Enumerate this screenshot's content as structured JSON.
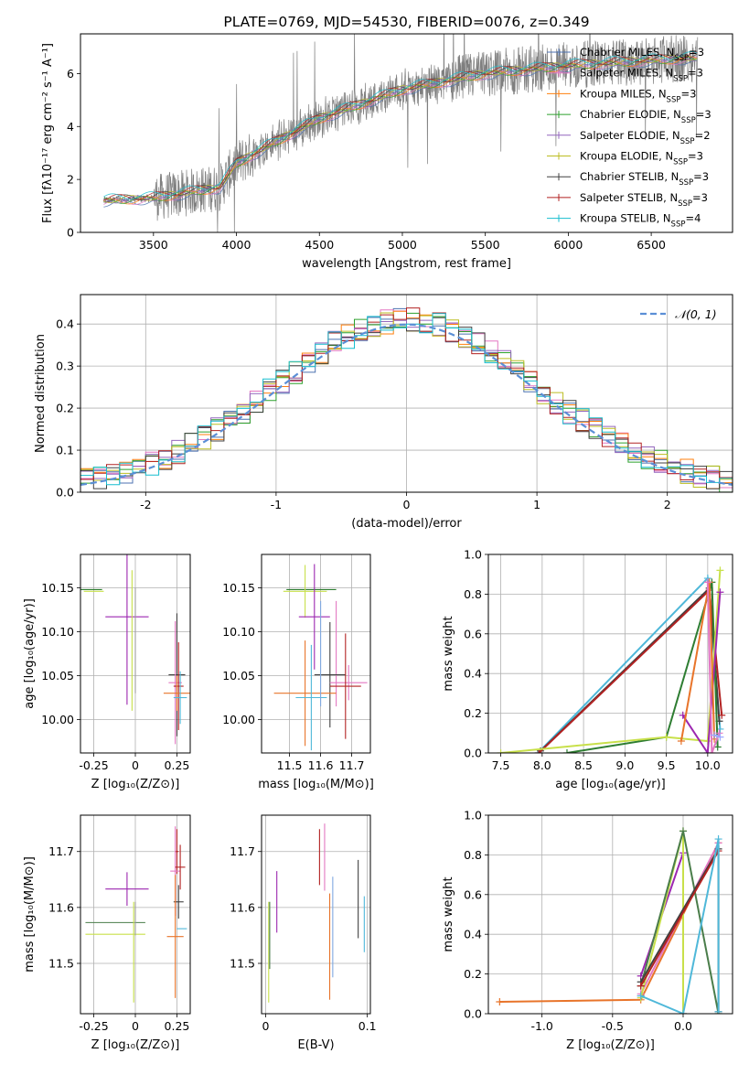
{
  "chart_data": [
    {
      "id": "spectrum",
      "type": "line",
      "title": "PLATE=0769, MJD=54530, FIBERID=0076, z=0.349",
      "xlabel": "wavelength [Angstrom, rest frame]",
      "ylabel": "Flux [fλ10⁻¹⁷ erg cm⁻² s⁻¹ A⁻¹]",
      "xlim": [
        3060,
        6990
      ],
      "ylim": [
        0,
        7.5
      ],
      "xticks": [
        3500,
        4000,
        4500,
        5000,
        5500,
        6000,
        6500
      ],
      "yticks": [
        0,
        2,
        4,
        6
      ],
      "data_continuum": {
        "x": [
          3200,
          3500,
          3900,
          4000,
          4200,
          4500,
          5000,
          5500,
          6000,
          6500,
          6780
        ],
        "y": [
          1.2,
          1.3,
          1.7,
          2.6,
          3.3,
          4.3,
          5.4,
          6.0,
          6.3,
          6.5,
          6.6
        ]
      },
      "legend": [
        {
          "label": "Chabrier MILES, N_SSP=3",
          "color": "#4c72b0"
        },
        {
          "label": "Salpeter MILES, N_SSP=3",
          "color": "#e377c2"
        },
        {
          "label": "Kroupa MILES, N_SSP=3",
          "color": "#ff7f0e"
        },
        {
          "label": "Chabrier ELODIE, N_SSP=3",
          "color": "#2ca02c"
        },
        {
          "label": "Salpeter ELODIE, N_SSP=2",
          "color": "#9467bd"
        },
        {
          "label": "Kroupa ELODIE, N_SSP=3",
          "color": "#bcbd22"
        },
        {
          "label": "Chabrier STELIB, N_SSP=3",
          "color": "#404040"
        },
        {
          "label": "Salpeter STELIB, N_SSP=3",
          "color": "#b22222"
        },
        {
          "label": "Kroupa STELIB, N_SSP=4",
          "color": "#17becf"
        }
      ],
      "legend_parts": [
        {
          "name": "Chabrier MILES, N",
          "sub": "SSP",
          "rest": "=3"
        },
        {
          "name": "Salpeter MILES, N",
          "sub": "SSP",
          "rest": "=3"
        },
        {
          "name": "Kroupa MILES, N",
          "sub": "SSP",
          "rest": "=3"
        },
        {
          "name": "Chabrier ELODIE, N",
          "sub": "SSP",
          "rest": "=3"
        },
        {
          "name": "Salpeter ELODIE, N",
          "sub": "SSP",
          "rest": "=2"
        },
        {
          "name": "Kroupa ELODIE, N",
          "sub": "SSP",
          "rest": "=3"
        },
        {
          "name": "Chabrier STELIB, N",
          "sub": "SSP",
          "rest": "=3"
        },
        {
          "name": "Salpeter STELIB, N",
          "sub": "SSP",
          "rest": "=3"
        },
        {
          "name": "Kroupa STELIB, N",
          "sub": "SSP",
          "rest": "=4"
        }
      ]
    },
    {
      "id": "residuals",
      "type": "line",
      "xlabel": "(data-model)/error",
      "ylabel": "Normed distribution",
      "xlim": [
        -2.5,
        2.5
      ],
      "ylim": [
        0,
        0.47
      ],
      "xticks": [
        -2,
        -1,
        0,
        1,
        2
      ],
      "yticks": [
        0.0,
        0.1,
        0.2,
        0.3,
        0.4
      ],
      "legend": [
        {
          "label": "𝒩(0, 1)",
          "color": "#5b8fd6",
          "style": "dashed"
        }
      ],
      "gaussian": {
        "mean": 0,
        "sigma": 1
      }
    },
    {
      "id": "age_vs_Z",
      "type": "scatter",
      "xlabel": "Z [log₁₀(Z/Z⊙)]",
      "ylabel": "age  [log₁₀(age/yr)]",
      "xlim": [
        -0.33,
        0.33
      ],
      "ylim": [
        9.962,
        10.188
      ],
      "xticks": [
        -0.25,
        0.0,
        0.25
      ],
      "yticks": [
        10.0,
        10.05,
        10.1,
        10.15
      ],
      "points": [
        {
          "x": -0.28,
          "y": 10.148,
          "xerr": 0.08,
          "yerr": 0.0,
          "color": "#2e7d32"
        },
        {
          "x": -0.25,
          "y": 10.146,
          "xerr": 0.06,
          "yerr": 0.0,
          "color": "#c8e04a"
        },
        {
          "x": -0.05,
          "y": 10.117,
          "xerr": 0.13,
          "yerr": 0.1,
          "color": "#9c27b0"
        },
        {
          "x": -0.02,
          "y": 10.09,
          "xerr": 0.0,
          "yerr": 0.08,
          "color": "#c8e04a"
        },
        {
          "x": 0.0,
          "y": 10.09,
          "xerr": 0.0,
          "yerr": 0.06,
          "color": "#9e9e9e"
        },
        {
          "x": 0.25,
          "y": 10.051,
          "xerr": 0.05,
          "yerr": 0.07,
          "color": "#404040"
        },
        {
          "x": 0.24,
          "y": 10.042,
          "xerr": 0.04,
          "yerr": 0.07,
          "color": "#e377c2"
        },
        {
          "x": 0.26,
          "y": 10.038,
          "xerr": 0.03,
          "yerr": 0.05,
          "color": "#b22222"
        },
        {
          "x": 0.25,
          "y": 10.03,
          "xerr": 0.08,
          "yerr": 0.02,
          "color": "#e8742a"
        },
        {
          "x": 0.27,
          "y": 10.025,
          "xerr": 0.04,
          "yerr": 0.03,
          "color": "#4fb8d9"
        }
      ]
    },
    {
      "id": "age_vs_mass",
      "type": "scatter",
      "xlabel": "mass [log₁₀(M/M⊙)]",
      "ylabel": "",
      "xlim": [
        11.41,
        11.76
      ],
      "ylim": [
        9.962,
        10.188
      ],
      "xticks": [
        11.5,
        11.6,
        11.7
      ],
      "yticks": [
        10.0,
        10.05,
        10.1,
        10.15
      ],
      "points": [
        {
          "x": 11.57,
          "y": 10.148,
          "xerr": 0.08,
          "yerr": 0.0,
          "color": "#2e7d32"
        },
        {
          "x": 11.55,
          "y": 10.146,
          "xerr": 0.07,
          "yerr": 0.03,
          "color": "#c8e04a"
        },
        {
          "x": 11.58,
          "y": 10.117,
          "xerr": 0.05,
          "yerr": 0.06,
          "color": "#9c27b0"
        },
        {
          "x": 11.65,
          "y": 10.075,
          "xerr": 0.0,
          "yerr": 0.06,
          "color": "#e377c2"
        },
        {
          "x": 11.63,
          "y": 10.051,
          "xerr": 0.05,
          "yerr": 0.06,
          "color": "#404040"
        },
        {
          "x": 11.69,
          "y": 10.042,
          "xerr": 0.06,
          "yerr": 0.02,
          "color": "#e377c2"
        },
        {
          "x": 11.68,
          "y": 10.038,
          "xerr": 0.05,
          "yerr": 0.06,
          "color": "#b22222"
        },
        {
          "x": 11.55,
          "y": 10.03,
          "xerr": 0.1,
          "yerr": 0.06,
          "color": "#e8742a"
        },
        {
          "x": 11.57,
          "y": 10.025,
          "xerr": 0.05,
          "yerr": 0.06,
          "color": "#4fb8d9"
        },
        {
          "x": 11.6,
          "y": 10.075,
          "xerr": 0.0,
          "yerr": 0.06,
          "color": "#7fa8e0"
        }
      ]
    },
    {
      "id": "massweight_vs_age",
      "type": "line",
      "xlabel": "age  [log₁₀(age/yr)]",
      "ylabel": "mass weight",
      "xlim": [
        7.35,
        10.3
      ],
      "ylim": [
        0.0,
        1.0
      ],
      "xticks": [
        7.5,
        8.0,
        8.5,
        9.0,
        9.5,
        10.0
      ],
      "yticks": [
        0.0,
        0.2,
        0.4,
        0.6,
        0.8,
        1.0
      ],
      "series": [
        {
          "color": "#4fb8d9",
          "x": [
            7.95,
            10.0,
            10.15
          ],
          "y": [
            0.0,
            0.88,
            0.12
          ]
        },
        {
          "color": "#404040",
          "x": [
            7.98,
            10.02,
            10.14
          ],
          "y": [
            0.01,
            0.83,
            0.16
          ]
        },
        {
          "color": "#b22222",
          "x": [
            7.96,
            10.02,
            10.17
          ],
          "y": [
            0.0,
            0.82,
            0.19
          ]
        },
        {
          "color": "#2e7d32",
          "x": [
            8.3,
            9.5,
            10.05,
            10.12
          ],
          "y": [
            0.0,
            0.08,
            0.86,
            0.03
          ]
        },
        {
          "color": "#c8e04a",
          "x": [
            7.5,
            9.5,
            10.0,
            10.15
          ],
          "y": [
            0.0,
            0.08,
            0.06,
            0.92
          ]
        },
        {
          "color": "#9c27b0",
          "x": [
            9.7,
            10.0,
            10.15
          ],
          "y": [
            0.19,
            0.0,
            0.81
          ]
        },
        {
          "color": "#e8742a",
          "x": [
            9.68,
            10.02,
            10.08
          ],
          "y": [
            0.06,
            0.86,
            0.07
          ]
        },
        {
          "color": "#e377c2",
          "x": [
            10.0,
            10.05,
            10.14
          ],
          "y": [
            0.86,
            0.0,
            0.1
          ]
        },
        {
          "color": "#9aa8ff",
          "x": [
            10.08,
            10.15
          ],
          "y": [
            0.09,
            0.08
          ]
        }
      ]
    },
    {
      "id": "mass_vs_Z",
      "type": "scatter",
      "xlabel": "Z [log₁₀(Z/Z⊙)]",
      "ylabel": "mass [log₁₀(M/M⊙)]",
      "xlim": [
        -0.33,
        0.33
      ],
      "ylim": [
        11.41,
        11.765
      ],
      "xticks": [
        -0.25,
        0.0,
        0.25
      ],
      "yticks": [
        11.5,
        11.6,
        11.7
      ],
      "points": [
        {
          "x": -0.05,
          "y": 11.633,
          "xerr": 0.13,
          "yerr": 0.03,
          "color": "#9c27b0"
        },
        {
          "x": -0.12,
          "y": 11.573,
          "xerr": 0.18,
          "yerr": 0.0,
          "color": "#4a7d4a"
        },
        {
          "x": -0.12,
          "y": 11.552,
          "xerr": 0.18,
          "yerr": 0.0,
          "color": "#c8e04a"
        },
        {
          "x": -0.01,
          "y": 11.52,
          "xerr": 0.0,
          "yerr": 0.09,
          "color": "#c8e04a"
        },
        {
          "x": 0.0,
          "y": 11.58,
          "xerr": 0.0,
          "yerr": 0.03,
          "color": "#9e9e9e"
        },
        {
          "x": 0.25,
          "y": 11.7,
          "xerr": 0.01,
          "yerr": 0.04,
          "color": "#b22222"
        },
        {
          "x": 0.24,
          "y": 11.665,
          "xerr": 0.03,
          "yerr": 0.08,
          "color": "#e377c2"
        },
        {
          "x": 0.27,
          "y": 11.672,
          "xerr": 0.03,
          "yerr": 0.04,
          "color": "#b22222"
        },
        {
          "x": 0.26,
          "y": 11.61,
          "xerr": 0.03,
          "yerr": 0.03,
          "color": "#404040"
        },
        {
          "x": 0.28,
          "y": 11.562,
          "xerr": 0.03,
          "yerr": 0.0,
          "color": "#4fb8d9"
        },
        {
          "x": 0.24,
          "y": 11.548,
          "xerr": 0.05,
          "yerr": 0.11,
          "color": "#e8742a"
        }
      ]
    },
    {
      "id": "mass_vs_EBV",
      "type": "scatter",
      "xlabel": "E(B-V)",
      "ylabel": "",
      "xlim": [
        -0.004,
        0.103
      ],
      "ylim": [
        11.41,
        11.765
      ],
      "xticks": [
        0.0,
        0.1
      ],
      "yticks": [
        11.5,
        11.6,
        11.7
      ],
      "points": [
        {
          "x": 0.003,
          "y": 11.52,
          "xerr": 0,
          "yerr": 0.09,
          "color": "#c8e04a"
        },
        {
          "x": 0.004,
          "y": 11.55,
          "xerr": 0,
          "yerr": 0.06,
          "color": "#4a7d4a"
        },
        {
          "x": 0.011,
          "y": 11.61,
          "xerr": 0,
          "yerr": 0.055,
          "color": "#9c27b0"
        },
        {
          "x": 0.053,
          "y": 11.69,
          "xerr": 0,
          "yerr": 0.05,
          "color": "#b22222"
        },
        {
          "x": 0.058,
          "y": 11.69,
          "xerr": 0,
          "yerr": 0.06,
          "color": "#e377c2"
        },
        {
          "x": 0.063,
          "y": 11.53,
          "xerr": 0,
          "yerr": 0.095,
          "color": "#e8742a"
        },
        {
          "x": 0.066,
          "y": 11.565,
          "xerr": 0,
          "yerr": 0.09,
          "color": "#7fa8e0"
        },
        {
          "x": 0.091,
          "y": 11.615,
          "xerr": 0,
          "yerr": 0.07,
          "color": "#404040"
        },
        {
          "x": 0.097,
          "y": 11.57,
          "xerr": 0,
          "yerr": 0.05,
          "color": "#4fb8d9"
        }
      ]
    },
    {
      "id": "massweight_vs_Z",
      "type": "line",
      "xlabel": "Z [log₁₀(Z/Z⊙)]",
      "ylabel": "mass weight",
      "xlim": [
        -1.38,
        0.35
      ],
      "ylim": [
        0.0,
        1.0
      ],
      "xticks": [
        -1.0,
        -0.5,
        0.0
      ],
      "yticks": [
        0.0,
        0.2,
        0.4,
        0.6,
        0.8,
        1.0
      ],
      "series": [
        {
          "color": "#e8742a",
          "x": [
            -1.3,
            -0.3,
            0.25
          ],
          "y": [
            0.06,
            0.07,
            0.86
          ]
        },
        {
          "color": "#e377c2",
          "x": [
            -0.3,
            -0.3,
            0.25
          ],
          "y": [
            0.09,
            0.1,
            0.86
          ]
        },
        {
          "color": "#9c27b0",
          "x": [
            -0.3,
            0.0,
            0.0
          ],
          "y": [
            0.19,
            0.81,
            0.0
          ]
        },
        {
          "color": "#c8e04a",
          "x": [
            -0.3,
            0.0,
            0.0
          ],
          "y": [
            0.08,
            0.92,
            0.0
          ]
        },
        {
          "color": "#4a7d4a",
          "x": [
            -0.3,
            0.0,
            0.25
          ],
          "y": [
            0.14,
            0.92,
            0.0
          ]
        },
        {
          "color": "#404040",
          "x": [
            -0.3,
            0.25,
            0.25
          ],
          "y": [
            0.16,
            0.83,
            0.01
          ]
        },
        {
          "color": "#b22222",
          "x": [
            -0.3,
            0.25
          ],
          "y": [
            0.14,
            0.82
          ]
        },
        {
          "color": "#4fb8d9",
          "x": [
            -0.3,
            0.0,
            0.25,
            0.25
          ],
          "y": [
            0.09,
            0.0,
            0.88,
            0.01
          ]
        }
      ]
    }
  ]
}
